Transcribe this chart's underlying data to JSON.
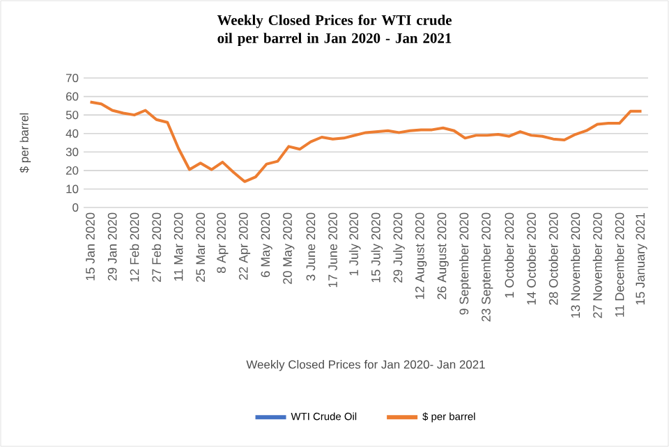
{
  "chart_data": {
    "type": "line",
    "title": "Weekly Closed Prices for WTI crude oil per barrel in Jan 2020 - Jan 2021",
    "xlabel": "Weekly Closed Prices for Jan 2020- Jan 2021",
    "ylabel": "$ per barrel",
    "categories": [
      "15 Jan 2020",
      null,
      "29 Jan 2020",
      null,
      "12 Feb 2020",
      null,
      "27 Feb 2020",
      null,
      "11 Mar 2020",
      null,
      "25 Mar 2020",
      null,
      "8 Apr 2020",
      null,
      "22 Apr 2020",
      null,
      "6 May 2020",
      null,
      "20 May 2020",
      null,
      "3 June 2020",
      null,
      "17 June 2020",
      null,
      "1 July 2020",
      null,
      "15 July 2020",
      null,
      "29 July 2020",
      null,
      "12 August 2020",
      null,
      "26 August 2020",
      null,
      "9 September 2020",
      null,
      "23 September 2020",
      null,
      "1 October 2020",
      null,
      "14 October 2020",
      null,
      "28 October 2020",
      null,
      "13 November 2020",
      null,
      "27 November 2020",
      null,
      "11 December 2020",
      null,
      "15 January 2021"
    ],
    "series": [
      {
        "name": "WTI Crude Oil",
        "color": "#4472c4",
        "values": [
          null,
          null,
          null,
          null,
          null,
          null,
          null,
          null,
          null,
          null,
          null,
          null,
          null,
          null,
          null,
          null,
          null,
          null,
          null,
          null,
          null,
          null,
          null,
          null,
          null,
          null,
          null,
          null,
          null,
          null,
          null,
          null,
          null,
          null,
          null,
          null,
          null,
          null,
          null,
          null,
          null,
          null,
          null,
          null,
          null,
          null,
          null,
          null,
          null,
          null,
          null
        ]
      },
      {
        "name": "$ per barrel",
        "color": "#ed7d31",
        "values": [
          57,
          56,
          52.5,
          51,
          50,
          52.5,
          47.5,
          46,
          32,
          20.5,
          24,
          20.5,
          24.5,
          19,
          14,
          16.5,
          23.5,
          25,
          33,
          31.5,
          35.5,
          38,
          37,
          37.5,
          39,
          40.5,
          41,
          41.5,
          40.5,
          41.5,
          42,
          42,
          43,
          41.5,
          37.5,
          39,
          39,
          39.5,
          38.5,
          41,
          39,
          38.5,
          37,
          36.5,
          39.5,
          41.5,
          45,
          45.5,
          45.5,
          52,
          52
        ]
      }
    ],
    "ylim": [
      0,
      70
    ],
    "yticks": [
      0,
      10,
      20,
      30,
      40,
      50,
      60,
      70
    ],
    "grid": "y",
    "legend": "bottom"
  }
}
